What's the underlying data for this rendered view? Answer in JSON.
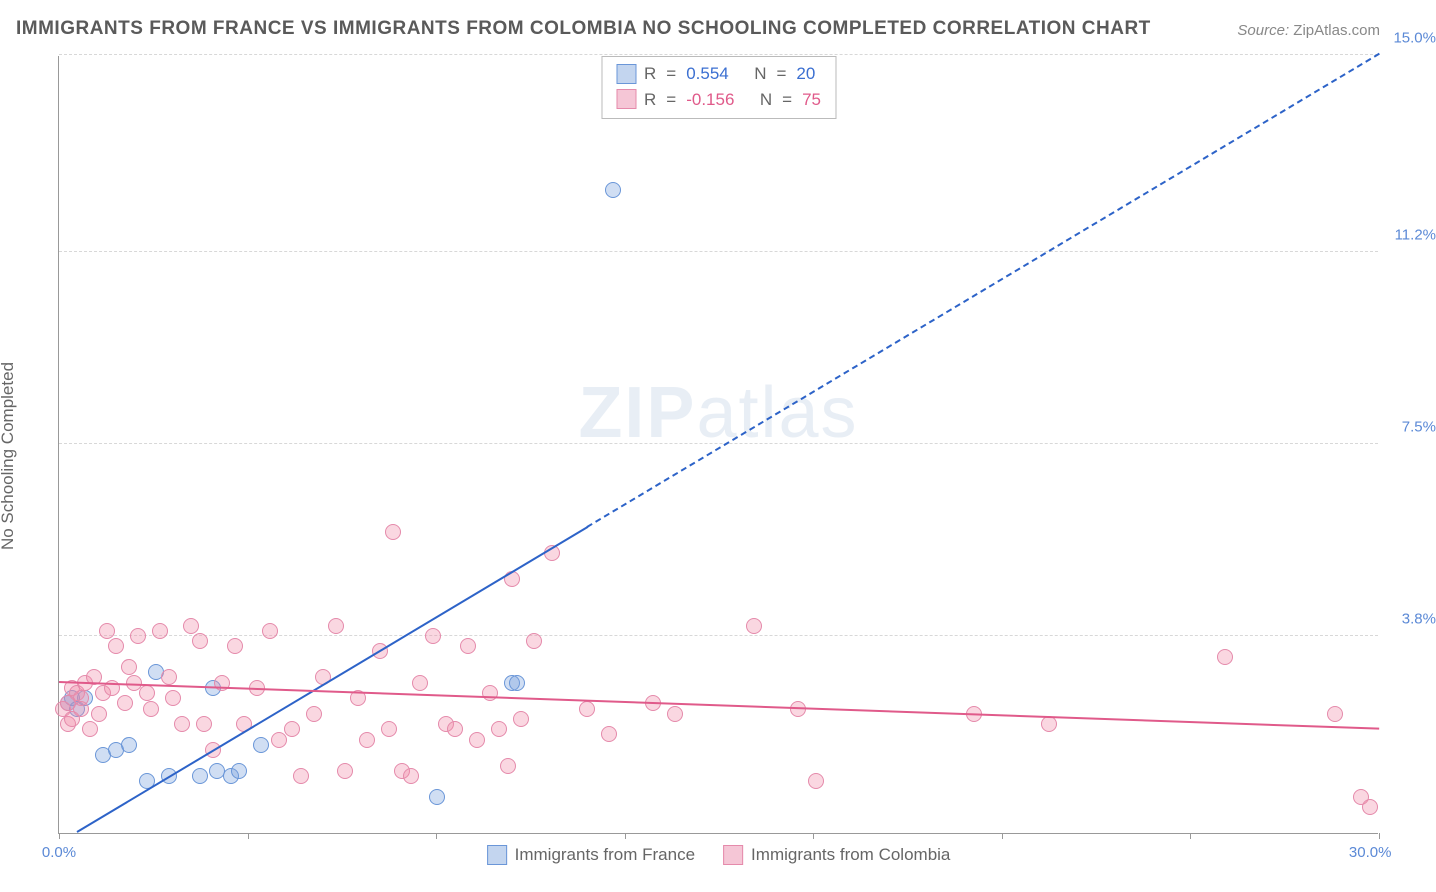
{
  "title": "IMMIGRANTS FROM FRANCE VS IMMIGRANTS FROM COLOMBIA NO SCHOOLING COMPLETED CORRELATION CHART",
  "source_label": "Source:",
  "source_value": "ZipAtlas.com",
  "ylabel": "No Schooling Completed",
  "watermark": {
    "bold": "ZIP",
    "rest": "atlas"
  },
  "chart": {
    "type": "scatter",
    "background_color": "#ffffff",
    "grid_color": "#d8d8d8",
    "axis_color": "#999999",
    "label_color": "#5b89d6",
    "xlim": [
      0,
      30
    ],
    "ylim": [
      0,
      15
    ],
    "x_ticks": [
      0,
      4.29,
      8.57,
      12.86,
      17.14,
      21.43,
      25.71,
      30
    ],
    "x_tick_labels_shown": {
      "0": "0.0%",
      "30": "30.0%"
    },
    "y_ticks": [
      0,
      3.8,
      7.5,
      11.2,
      15.0
    ],
    "y_tick_labels": [
      "",
      "3.8%",
      "7.5%",
      "11.2%",
      "15.0%"
    ],
    "marker_radius": 8,
    "marker_border": 1,
    "series": [
      {
        "name": "Immigrants from France",
        "color_fill": "rgba(120,160,220,0.35)",
        "color_stroke": "#6a96d8",
        "legend_fill": "#c3d5ef",
        "legend_stroke": "#6a96d8",
        "R": "0.554",
        "N": "20",
        "R_color": "#3b6fd1",
        "trend": {
          "x1": 0.4,
          "y1": 0.0,
          "x2": 30.0,
          "y2": 15.0,
          "color": "#2d63c8",
          "width": 2,
          "dash_split_x": 12.0
        },
        "points": [
          [
            0.2,
            2.5
          ],
          [
            0.3,
            2.6
          ],
          [
            0.4,
            2.4
          ],
          [
            0.6,
            2.6
          ],
          [
            1.0,
            1.5
          ],
          [
            1.3,
            1.6
          ],
          [
            1.6,
            1.7
          ],
          [
            2.0,
            1.0
          ],
          [
            2.2,
            3.1
          ],
          [
            2.5,
            1.1
          ],
          [
            3.2,
            1.1
          ],
          [
            3.5,
            2.8
          ],
          [
            3.6,
            1.2
          ],
          [
            3.9,
            1.1
          ],
          [
            4.1,
            1.2
          ],
          [
            4.6,
            1.7
          ],
          [
            8.6,
            0.7
          ],
          [
            10.3,
            2.9
          ],
          [
            10.4,
            2.9
          ],
          [
            12.6,
            12.4
          ]
        ]
      },
      {
        "name": "Immigrants from Colombia",
        "color_fill": "rgba(240,140,170,0.35)",
        "color_stroke": "#e58aab",
        "legend_fill": "#f5c6d6",
        "legend_stroke": "#e58aab",
        "R": "-0.156",
        "N": "75",
        "R_color": "#e05a8a",
        "trend": {
          "x1": 0.0,
          "y1": 2.9,
          "x2": 30.0,
          "y2": 2.0,
          "color": "#e05a8a",
          "width": 2
        },
        "points": [
          [
            0.1,
            2.4
          ],
          [
            0.2,
            2.5
          ],
          [
            0.2,
            2.1
          ],
          [
            0.3,
            2.8
          ],
          [
            0.3,
            2.2
          ],
          [
            0.4,
            2.7
          ],
          [
            0.5,
            2.4
          ],
          [
            0.5,
            2.6
          ],
          [
            0.6,
            2.9
          ],
          [
            0.7,
            2.0
          ],
          [
            0.8,
            3.0
          ],
          [
            0.9,
            2.3
          ],
          [
            1.0,
            2.7
          ],
          [
            1.1,
            3.9
          ],
          [
            1.2,
            2.8
          ],
          [
            1.3,
            3.6
          ],
          [
            1.5,
            2.5
          ],
          [
            1.6,
            3.2
          ],
          [
            1.7,
            2.9
          ],
          [
            1.8,
            3.8
          ],
          [
            2.0,
            2.7
          ],
          [
            2.1,
            2.4
          ],
          [
            2.3,
            3.9
          ],
          [
            2.5,
            3.0
          ],
          [
            2.6,
            2.6
          ],
          [
            2.8,
            2.1
          ],
          [
            3.0,
            4.0
          ],
          [
            3.2,
            3.7
          ],
          [
            3.3,
            2.1
          ],
          [
            3.5,
            1.6
          ],
          [
            3.7,
            2.9
          ],
          [
            4.0,
            3.6
          ],
          [
            4.2,
            2.1
          ],
          [
            4.5,
            2.8
          ],
          [
            4.8,
            3.9
          ],
          [
            5.0,
            1.8
          ],
          [
            5.3,
            2.0
          ],
          [
            5.5,
            1.1
          ],
          [
            5.8,
            2.3
          ],
          [
            6.0,
            3.0
          ],
          [
            6.3,
            4.0
          ],
          [
            6.5,
            1.2
          ],
          [
            6.8,
            2.6
          ],
          [
            7.0,
            1.8
          ],
          [
            7.3,
            3.5
          ],
          [
            7.5,
            2.0
          ],
          [
            7.6,
            5.8
          ],
          [
            7.8,
            1.2
          ],
          [
            8.0,
            1.1
          ],
          [
            8.2,
            2.9
          ],
          [
            8.5,
            3.8
          ],
          [
            8.8,
            2.1
          ],
          [
            9.0,
            2.0
          ],
          [
            9.3,
            3.6
          ],
          [
            9.5,
            1.8
          ],
          [
            9.8,
            2.7
          ],
          [
            10.0,
            2.0
          ],
          [
            10.2,
            1.3
          ],
          [
            10.3,
            4.9
          ],
          [
            10.5,
            2.2
          ],
          [
            10.8,
            3.7
          ],
          [
            11.2,
            5.4
          ],
          [
            12.0,
            2.4
          ],
          [
            12.5,
            1.9
          ],
          [
            13.5,
            2.5
          ],
          [
            14.0,
            2.3
          ],
          [
            15.8,
            4.0
          ],
          [
            17.2,
            1.0
          ],
          [
            20.8,
            2.3
          ],
          [
            22.5,
            2.1
          ],
          [
            26.5,
            3.4
          ],
          [
            29.0,
            2.3
          ],
          [
            29.6,
            0.7
          ],
          [
            29.8,
            0.5
          ],
          [
            16.8,
            2.4
          ]
        ]
      }
    ]
  },
  "bottom_legend": [
    {
      "label": "Immigrants from France",
      "fill": "#c3d5ef",
      "stroke": "#6a96d8"
    },
    {
      "label": "Immigrants from Colombia",
      "fill": "#f5c6d6",
      "stroke": "#e58aab"
    }
  ]
}
